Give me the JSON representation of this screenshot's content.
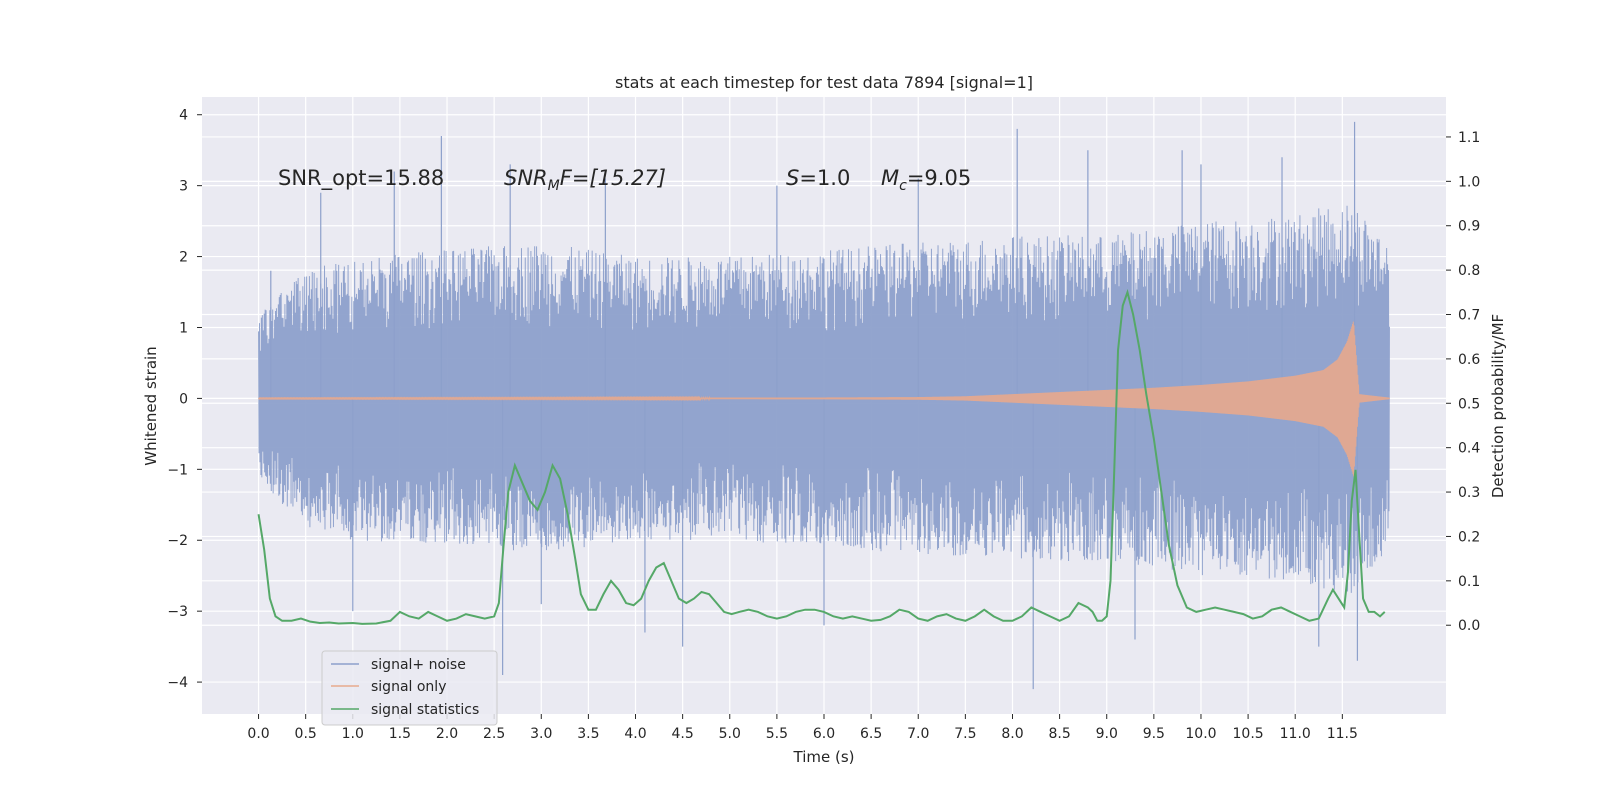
{
  "chart_data": {
    "type": "line",
    "title": "stats at each timestep for test data 7894 [signal=1]",
    "xlabel": "Time (s)",
    "ylabel_left": "Whitened strain",
    "ylabel_right": "Detection probability/MF",
    "xlim": [
      -0.6,
      12.6
    ],
    "ylim_left": [
      -4.45,
      4.25
    ],
    "ylim_right": [
      -0.2,
      1.19
    ],
    "x_ticks": [
      "0.0",
      "0.5",
      "1.0",
      "1.5",
      "2.0",
      "2.5",
      "3.0",
      "3.5",
      "4.0",
      "4.5",
      "5.0",
      "5.5",
      "6.0",
      "6.5",
      "7.0",
      "7.5",
      "8.0",
      "8.5",
      "9.0",
      "9.5",
      "10.0",
      "10.5",
      "11.0",
      "11.5"
    ],
    "x_tick_values": [
      0,
      0.5,
      1,
      1.5,
      2,
      2.5,
      3,
      3.5,
      4,
      4.5,
      5,
      5.5,
      6,
      6.5,
      7,
      7.5,
      8,
      8.5,
      9,
      9.5,
      10,
      10.5,
      11,
      11.5
    ],
    "y_ticks_left": [
      "−4",
      "−3",
      "−2",
      "−1",
      "0",
      "1",
      "2",
      "3",
      "4"
    ],
    "y_tick_values_left": [
      -4,
      -3,
      -2,
      -1,
      0,
      1,
      2,
      3,
      4
    ],
    "y_ticks_right": [
      "0.0",
      "0.1",
      "0.2",
      "0.3",
      "0.4",
      "0.5",
      "0.6",
      "0.7",
      "0.8",
      "0.9",
      "1.0",
      "1.1"
    ],
    "y_tick_values_right": [
      0,
      0.1,
      0.2,
      0.3,
      0.4,
      0.5,
      0.6,
      0.7,
      0.8,
      0.9,
      1.0,
      1.1
    ],
    "grid": true,
    "legend_position": "lower-left",
    "annotations": {
      "snr_opt": "SNR_opt=15.88",
      "snr_mf_base": "SNR",
      "snr_mf_sub": "M",
      "snr_mf_rest": "F=[15.27]",
      "s_var": "S",
      "s_val": "=1.0",
      "mc_var": "M",
      "mc_sub": "c",
      "mc_val": "=9.05"
    },
    "series": [
      {
        "name": "signal+ noise",
        "color": "#8da0cb",
        "x_range": [
          0.0,
          12.0
        ],
        "envelope_points": [
          [
            0.0,
            1.2
          ],
          [
            0.5,
            1.8
          ],
          [
            1.0,
            2.0
          ],
          [
            2.0,
            2.1
          ],
          [
            3.0,
            2.2
          ],
          [
            4.0,
            2.0
          ],
          [
            5.0,
            2.0
          ],
          [
            6.0,
            2.1
          ],
          [
            7.0,
            2.2
          ],
          [
            8.0,
            2.3
          ],
          [
            9.0,
            2.3
          ],
          [
            10.0,
            2.5
          ],
          [
            11.0,
            2.6
          ],
          [
            11.6,
            2.8
          ],
          [
            12.0,
            2.2
          ]
        ],
        "spikes": [
          [
            0.13,
            1.8
          ],
          [
            0.66,
            2.9
          ],
          [
            1.44,
            3.2
          ],
          [
            1.94,
            3.7
          ],
          [
            2.67,
            3.3
          ],
          [
            4.5,
            -3.5
          ],
          [
            2.59,
            -3.9
          ],
          [
            8.22,
            -4.1
          ],
          [
            10.0,
            3.3
          ],
          [
            10.86,
            3.4
          ],
          [
            11.25,
            -3.5
          ],
          [
            11.63,
            3.9
          ],
          [
            11.66,
            -3.7
          ],
          [
            9.8,
            3.5
          ],
          [
            8.8,
            3.5
          ],
          [
            9.3,
            -3.4
          ],
          [
            3.68,
            3.1
          ],
          [
            4.1,
            -3.3
          ],
          [
            6.0,
            -3.2
          ],
          [
            1.0,
            -3.0
          ],
          [
            3.0,
            -2.9
          ],
          [
            5.5,
            3.0
          ],
          [
            7.0,
            3.1
          ],
          [
            8.05,
            3.8
          ]
        ]
      },
      {
        "name": "signal only",
        "color": "#e8a98d",
        "points": [
          [
            0.0,
            0.005
          ],
          [
            3.0,
            0.008
          ],
          [
            6.0,
            0.012
          ],
          [
            7.0,
            0.018
          ],
          [
            7.5,
            0.03
          ],
          [
            8.0,
            0.06
          ],
          [
            8.5,
            0.09
          ],
          [
            9.0,
            0.12
          ],
          [
            9.5,
            0.15
          ],
          [
            10.0,
            0.19
          ],
          [
            10.5,
            0.24
          ],
          [
            11.0,
            0.32
          ],
          [
            11.3,
            0.4
          ],
          [
            11.45,
            0.55
          ],
          [
            11.55,
            0.8
          ],
          [
            11.62,
            1.1
          ],
          [
            11.66,
            0.4
          ],
          [
            11.68,
            0.06
          ],
          [
            12.0,
            0.01
          ]
        ]
      },
      {
        "name": "signal statistics",
        "color": "#55a868",
        "points": [
          [
            0.0,
            0.25
          ],
          [
            0.06,
            0.17
          ],
          [
            0.12,
            0.06
          ],
          [
            0.18,
            0.02
          ],
          [
            0.25,
            0.01
          ],
          [
            0.35,
            0.01
          ],
          [
            0.45,
            0.015
          ],
          [
            0.55,
            0.008
          ],
          [
            0.65,
            0.005
          ],
          [
            0.75,
            0.006
          ],
          [
            0.85,
            0.004
          ],
          [
            1.0,
            0.005
          ],
          [
            1.1,
            0.003
          ],
          [
            1.25,
            0.004
          ],
          [
            1.4,
            0.01
          ],
          [
            1.5,
            0.03
          ],
          [
            1.6,
            0.02
          ],
          [
            1.7,
            0.015
          ],
          [
            1.8,
            0.03
          ],
          [
            1.9,
            0.02
          ],
          [
            2.0,
            0.01
          ],
          [
            2.1,
            0.015
          ],
          [
            2.2,
            0.025
          ],
          [
            2.3,
            0.02
          ],
          [
            2.4,
            0.015
          ],
          [
            2.5,
            0.02
          ],
          [
            2.55,
            0.05
          ],
          [
            2.6,
            0.18
          ],
          [
            2.65,
            0.3
          ],
          [
            2.72,
            0.36
          ],
          [
            2.8,
            0.32
          ],
          [
            2.88,
            0.28
          ],
          [
            2.96,
            0.26
          ],
          [
            3.04,
            0.3
          ],
          [
            3.12,
            0.36
          ],
          [
            3.2,
            0.33
          ],
          [
            3.28,
            0.25
          ],
          [
            3.36,
            0.15
          ],
          [
            3.42,
            0.07
          ],
          [
            3.5,
            0.035
          ],
          [
            3.58,
            0.035
          ],
          [
            3.66,
            0.07
          ],
          [
            3.74,
            0.1
          ],
          [
            3.82,
            0.08
          ],
          [
            3.9,
            0.05
          ],
          [
            3.98,
            0.045
          ],
          [
            4.06,
            0.06
          ],
          [
            4.14,
            0.1
          ],
          [
            4.22,
            0.13
          ],
          [
            4.3,
            0.14
          ],
          [
            4.38,
            0.1
          ],
          [
            4.46,
            0.06
          ],
          [
            4.54,
            0.05
          ],
          [
            4.62,
            0.06
          ],
          [
            4.7,
            0.075
          ],
          [
            4.78,
            0.07
          ],
          [
            4.86,
            0.05
          ],
          [
            4.94,
            0.03
          ],
          [
            5.02,
            0.025
          ],
          [
            5.1,
            0.03
          ],
          [
            5.2,
            0.035
          ],
          [
            5.3,
            0.03
          ],
          [
            5.4,
            0.02
          ],
          [
            5.5,
            0.015
          ],
          [
            5.6,
            0.02
          ],
          [
            5.7,
            0.03
          ],
          [
            5.8,
            0.035
          ],
          [
            5.9,
            0.035
          ],
          [
            6.0,
            0.03
          ],
          [
            6.1,
            0.02
          ],
          [
            6.2,
            0.015
          ],
          [
            6.3,
            0.02
          ],
          [
            6.4,
            0.015
          ],
          [
            6.5,
            0.01
          ],
          [
            6.6,
            0.012
          ],
          [
            6.7,
            0.02
          ],
          [
            6.8,
            0.035
          ],
          [
            6.9,
            0.03
          ],
          [
            7.0,
            0.015
          ],
          [
            7.1,
            0.01
          ],
          [
            7.2,
            0.02
          ],
          [
            7.3,
            0.025
          ],
          [
            7.4,
            0.015
          ],
          [
            7.5,
            0.01
          ],
          [
            7.6,
            0.02
          ],
          [
            7.7,
            0.035
          ],
          [
            7.8,
            0.02
          ],
          [
            7.9,
            0.01
          ],
          [
            8.0,
            0.01
          ],
          [
            8.1,
            0.02
          ],
          [
            8.2,
            0.04
          ],
          [
            8.3,
            0.03
          ],
          [
            8.4,
            0.02
          ],
          [
            8.5,
            0.01
          ],
          [
            8.6,
            0.02
          ],
          [
            8.7,
            0.05
          ],
          [
            8.8,
            0.04
          ],
          [
            8.85,
            0.03
          ],
          [
            8.9,
            0.01
          ],
          [
            8.95,
            0.01
          ],
          [
            9.0,
            0.02
          ],
          [
            9.04,
            0.1
          ],
          [
            9.08,
            0.35
          ],
          [
            9.12,
            0.62
          ],
          [
            9.17,
            0.72
          ],
          [
            9.22,
            0.75
          ],
          [
            9.28,
            0.7
          ],
          [
            9.35,
            0.62
          ],
          [
            9.42,
            0.52
          ],
          [
            9.5,
            0.42
          ],
          [
            9.58,
            0.3
          ],
          [
            9.66,
            0.18
          ],
          [
            9.75,
            0.09
          ],
          [
            9.85,
            0.04
          ],
          [
            9.95,
            0.03
          ],
          [
            10.05,
            0.035
          ],
          [
            10.15,
            0.04
          ],
          [
            10.25,
            0.035
          ],
          [
            10.35,
            0.03
          ],
          [
            10.45,
            0.025
          ],
          [
            10.55,
            0.015
          ],
          [
            10.65,
            0.02
          ],
          [
            10.75,
            0.035
          ],
          [
            10.85,
            0.04
          ],
          [
            10.95,
            0.03
          ],
          [
            11.05,
            0.02
          ],
          [
            11.15,
            0.01
          ],
          [
            11.25,
            0.015
          ],
          [
            11.35,
            0.06
          ],
          [
            11.4,
            0.08
          ],
          [
            11.46,
            0.06
          ],
          [
            11.52,
            0.04
          ],
          [
            11.56,
            0.12
          ],
          [
            11.6,
            0.28
          ],
          [
            11.64,
            0.35
          ],
          [
            11.68,
            0.2
          ],
          [
            11.72,
            0.06
          ],
          [
            11.78,
            0.03
          ],
          [
            11.84,
            0.03
          ],
          [
            11.9,
            0.02
          ],
          [
            11.95,
            0.03
          ]
        ]
      }
    ]
  }
}
